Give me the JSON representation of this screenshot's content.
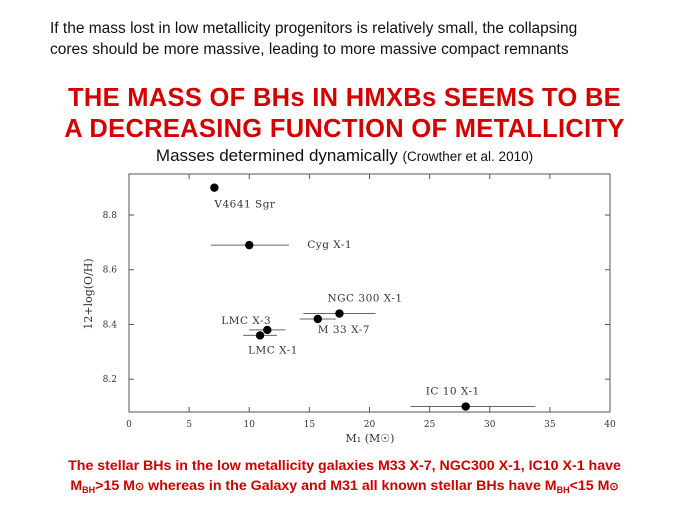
{
  "intro": {
    "line1": "If the mass lost in low metallicity progenitors is relatively small, the collapsing",
    "line2": "cores should be more massive, leading to more massive compact remnants"
  },
  "headline": {
    "line1": "THE MASS OF BHs IN HMXBs SEEMS TO BE",
    "line2": "A DECREASING FUNCTION OF METALLICITY"
  },
  "subtitle": {
    "text": "Masses determined dynamically",
    "citation": "(Crowther et al. 2010)"
  },
  "chart_data": {
    "type": "scatter",
    "xlabel": "M₁ (M☉)",
    "ylabel": "12+log(O/H)",
    "xlim": [
      0,
      40
    ],
    "ylim": [
      8.08,
      8.95
    ],
    "xticks": [
      0,
      5,
      10,
      15,
      20,
      25,
      30,
      35,
      40
    ],
    "yticks": [
      8.2,
      8.4,
      8.6,
      8.8
    ],
    "points": [
      {
        "label": "V4641 Sgr",
        "x": 7.1,
        "y": 8.9,
        "xerr": [
          0,
          0
        ]
      },
      {
        "label": "Cyg X-1",
        "x": 10.0,
        "y": 8.69,
        "xerr": [
          3.2,
          3.3
        ]
      },
      {
        "label": "NGC 300 X-1",
        "x": 17.5,
        "y": 8.44,
        "xerr": [
          3.0,
          3.0
        ]
      },
      {
        "label": "M 33 X-7",
        "x": 15.7,
        "y": 8.42,
        "xerr": [
          1.5,
          1.5
        ]
      },
      {
        "label": "LMC X-3",
        "x": 11.5,
        "y": 8.38,
        "xerr": [
          1.5,
          1.5
        ]
      },
      {
        "label": "LMC X-1",
        "x": 10.9,
        "y": 8.36,
        "xerr": [
          1.4,
          1.4
        ]
      },
      {
        "label": "IC 10 X-1",
        "x": 28.0,
        "y": 8.1,
        "xerr": [
          4.6,
          5.8
        ]
      }
    ]
  },
  "bottom": {
    "line1": "The stellar BHs in the low metallicity galaxies M33 X-7, NGC300 X-1, IC10 X-1 have",
    "m": "M",
    "bh": "BH",
    "gt15": ">15 M",
    "mid": " whereas in the Galaxy and M31 all known stellar BHs have M",
    "lt15": "<15 M",
    "sun": "⊙"
  }
}
